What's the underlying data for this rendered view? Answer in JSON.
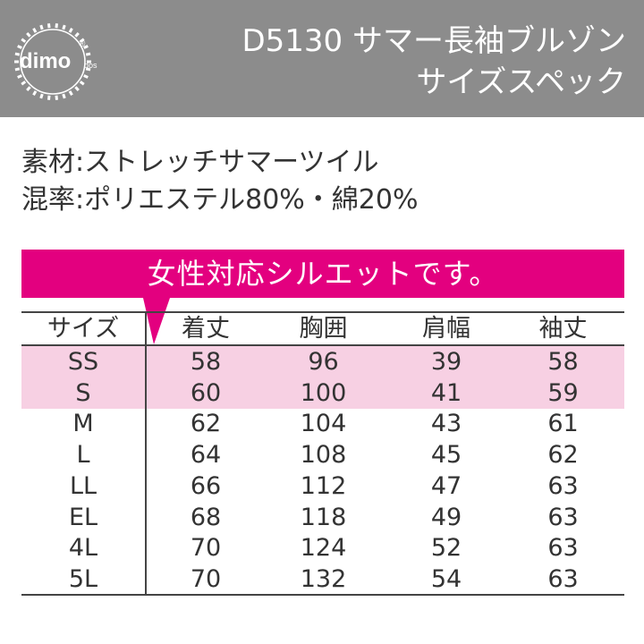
{
  "header": {
    "logo_text": "dimo",
    "logo_sub": "dos",
    "title_line1": "D5130 サマー長袖ブルゾン",
    "title_line2": "サイズスペック",
    "bg_color": "#8c8c8c"
  },
  "specs": {
    "material": "素材:ストレッチサマーツイル",
    "ratio": "混率:ポリエステル80%・綿20%"
  },
  "banner": {
    "text": "女性対応シルエットです。",
    "color": "#e3007f"
  },
  "table": {
    "headers": [
      "サイズ",
      "着丈",
      "胸囲",
      "肩幅",
      "袖丈"
    ],
    "highlight_color": "#f7d0e3",
    "rows": [
      {
        "size": "SS",
        "length": "58",
        "chest": "96",
        "shoulder": "39",
        "sleeve": "58",
        "highlight": true
      },
      {
        "size": "S",
        "length": "60",
        "chest": "100",
        "shoulder": "41",
        "sleeve": "59",
        "highlight": true
      },
      {
        "size": "M",
        "length": "62",
        "chest": "104",
        "shoulder": "43",
        "sleeve": "61",
        "highlight": false
      },
      {
        "size": "L",
        "length": "64",
        "chest": "108",
        "shoulder": "45",
        "sleeve": "62",
        "highlight": false
      },
      {
        "size": "LL",
        "length": "66",
        "chest": "112",
        "shoulder": "47",
        "sleeve": "63",
        "highlight": false
      },
      {
        "size": "EL",
        "length": "68",
        "chest": "118",
        "shoulder": "49",
        "sleeve": "63",
        "highlight": false
      },
      {
        "size": "4L",
        "length": "70",
        "chest": "124",
        "shoulder": "52",
        "sleeve": "63",
        "highlight": false
      },
      {
        "size": "5L",
        "length": "70",
        "chest": "132",
        "shoulder": "54",
        "sleeve": "63",
        "highlight": false
      }
    ]
  }
}
